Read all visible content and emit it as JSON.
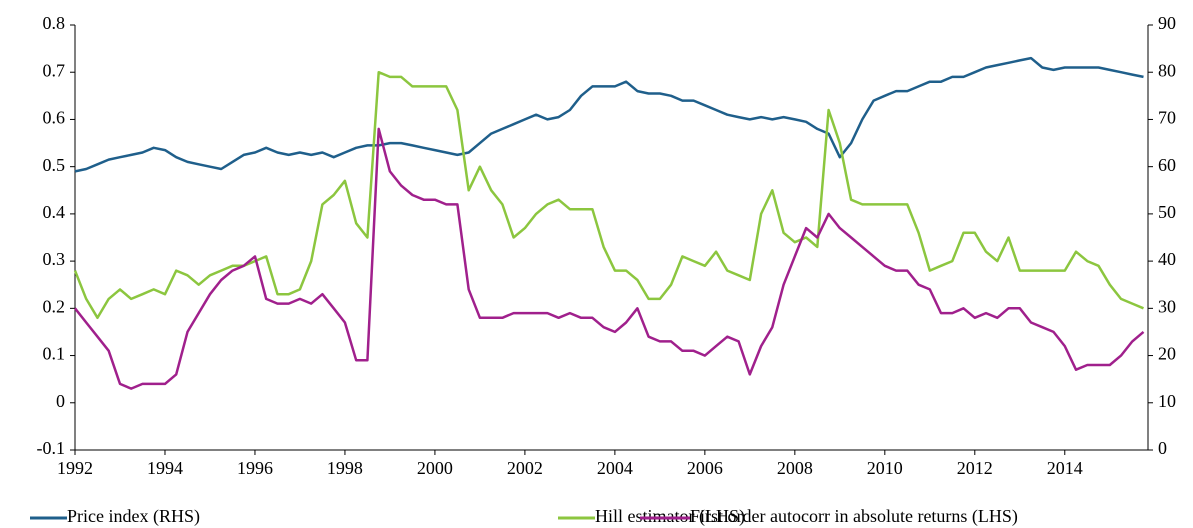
{
  "chart_data": {
    "type": "line",
    "x": [
      1992,
      1992.25,
      1992.5,
      1992.75,
      1993,
      1993.25,
      1993.5,
      1993.75,
      1994,
      1994.25,
      1994.5,
      1994.75,
      1995,
      1995.25,
      1995.5,
      1995.75,
      1996,
      1996.25,
      1996.5,
      1996.75,
      1997,
      1997.25,
      1997.5,
      1997.75,
      1998,
      1998.25,
      1998.5,
      1998.75,
      1999,
      1999.25,
      1999.5,
      1999.75,
      2000,
      2000.25,
      2000.5,
      2000.75,
      2001,
      2001.25,
      2001.5,
      2001.75,
      2002,
      2002.25,
      2002.5,
      2002.75,
      2003,
      2003.25,
      2003.5,
      2003.75,
      2004,
      2004.25,
      2004.5,
      2004.75,
      2005,
      2005.25,
      2005.5,
      2005.75,
      2006,
      2006.25,
      2006.5,
      2006.75,
      2007,
      2007.25,
      2007.5,
      2007.75,
      2008,
      2008.25,
      2008.5,
      2008.75,
      2009,
      2009.25,
      2009.5,
      2009.75,
      2010,
      2010.25,
      2010.5,
      2010.75,
      2011,
      2011.25,
      2011.5,
      2011.75,
      2012,
      2012.25,
      2012.5,
      2012.75,
      2013,
      2013.25,
      2013.5,
      2013.75,
      2014,
      2014.25,
      2014.5,
      2014.75,
      2015,
      2015.25,
      2015.5,
      2015.75
    ],
    "xlim": [
      1992,
      2015.85
    ],
    "xticks": [
      1992,
      1994,
      1996,
      1998,
      2000,
      2002,
      2004,
      2006,
      2008,
      2010,
      2012,
      2014
    ],
    "ylim": [
      -0.1,
      0.8
    ],
    "yticks": [
      -0.1,
      0,
      0.1,
      0.2,
      0.3,
      0.4,
      0.5,
      0.6,
      0.7,
      0.8
    ],
    "y2lim": [
      0,
      90
    ],
    "y2ticks": [
      0,
      10,
      20,
      30,
      40,
      50,
      60,
      70,
      80,
      90
    ],
    "series": [
      {
        "name": "Price index (RHS)",
        "color": "#1f5f8b",
        "axis": "y2",
        "values": [
          59,
          59.5,
          60.5,
          61.5,
          62,
          62.5,
          63,
          64,
          63.5,
          62,
          61,
          60.5,
          60,
          59.5,
          61,
          62.5,
          63,
          64,
          63,
          62.5,
          63,
          62.5,
          63,
          62,
          63,
          64,
          64.5,
          64.5,
          65,
          65,
          64.5,
          64,
          63.5,
          63,
          62.5,
          63,
          65,
          67,
          68,
          69,
          70,
          71,
          70,
          70.5,
          72,
          75,
          77,
          77,
          77,
          78,
          76,
          75.5,
          75.5,
          75,
          74,
          74,
          73,
          72,
          71,
          70.5,
          70,
          70.5,
          70,
          70.5,
          70,
          69.5,
          68,
          67,
          62,
          65,
          70,
          74,
          75,
          76,
          76,
          77,
          78,
          78,
          79,
          79,
          80,
          81,
          81.5,
          82,
          82.5,
          83,
          81,
          80.5,
          81,
          81,
          81,
          81,
          80.5,
          80,
          79.5,
          79
        ]
      },
      {
        "name": "Hill estimator (LHS)",
        "color": "#8cc63f",
        "values": [
          0.28,
          0.22,
          0.18,
          0.22,
          0.24,
          0.22,
          0.23,
          0.24,
          0.23,
          0.28,
          0.27,
          0.25,
          0.27,
          0.28,
          0.29,
          0.29,
          0.3,
          0.31,
          0.23,
          0.23,
          0.24,
          0.3,
          0.42,
          0.44,
          0.47,
          0.38,
          0.35,
          0.7,
          0.69,
          0.69,
          0.67,
          0.67,
          0.67,
          0.67,
          0.62,
          0.45,
          0.5,
          0.45,
          0.42,
          0.35,
          0.37,
          0.4,
          0.42,
          0.43,
          0.41,
          0.41,
          0.41,
          0.33,
          0.28,
          0.28,
          0.26,
          0.22,
          0.22,
          0.25,
          0.31,
          0.3,
          0.29,
          0.32,
          0.28,
          0.27,
          0.26,
          0.4,
          0.45,
          0.36,
          0.34,
          0.35,
          0.33,
          0.62,
          0.55,
          0.43,
          0.42,
          0.42,
          0.42,
          0.42,
          0.42,
          0.36,
          0.28,
          0.29,
          0.3,
          0.36,
          0.36,
          0.32,
          0.3,
          0.35,
          0.28,
          0.28,
          0.28,
          0.28,
          0.28,
          0.32,
          0.3,
          0.29,
          0.25,
          0.22,
          0.21,
          0.2
        ]
      },
      {
        "name": "First order autocorr in absolute returns (LHS)",
        "color": "#a0208c",
        "values": [
          0.2,
          0.17,
          0.14,
          0.11,
          0.04,
          0.03,
          0.04,
          0.04,
          0.04,
          0.06,
          0.15,
          0.19,
          0.23,
          0.26,
          0.28,
          0.29,
          0.31,
          0.22,
          0.21,
          0.21,
          0.22,
          0.21,
          0.23,
          0.2,
          0.17,
          0.09,
          0.09,
          0.58,
          0.49,
          0.46,
          0.44,
          0.43,
          0.43,
          0.42,
          0.42,
          0.24,
          0.18,
          0.18,
          0.18,
          0.19,
          0.19,
          0.19,
          0.19,
          0.18,
          0.19,
          0.18,
          0.18,
          0.16,
          0.15,
          0.17,
          0.2,
          0.14,
          0.13,
          0.13,
          0.11,
          0.11,
          0.1,
          0.12,
          0.14,
          0.13,
          0.06,
          0.12,
          0.16,
          0.25,
          0.31,
          0.37,
          0.35,
          0.4,
          0.37,
          0.35,
          0.33,
          0.31,
          0.29,
          0.28,
          0.28,
          0.25,
          0.24,
          0.19,
          0.19,
          0.2,
          0.18,
          0.19,
          0.18,
          0.2,
          0.2,
          0.17,
          0.16,
          0.15,
          0.12,
          0.07,
          0.08,
          0.08,
          0.08,
          0.1,
          0.13,
          0.15
        ]
      }
    ]
  }
}
